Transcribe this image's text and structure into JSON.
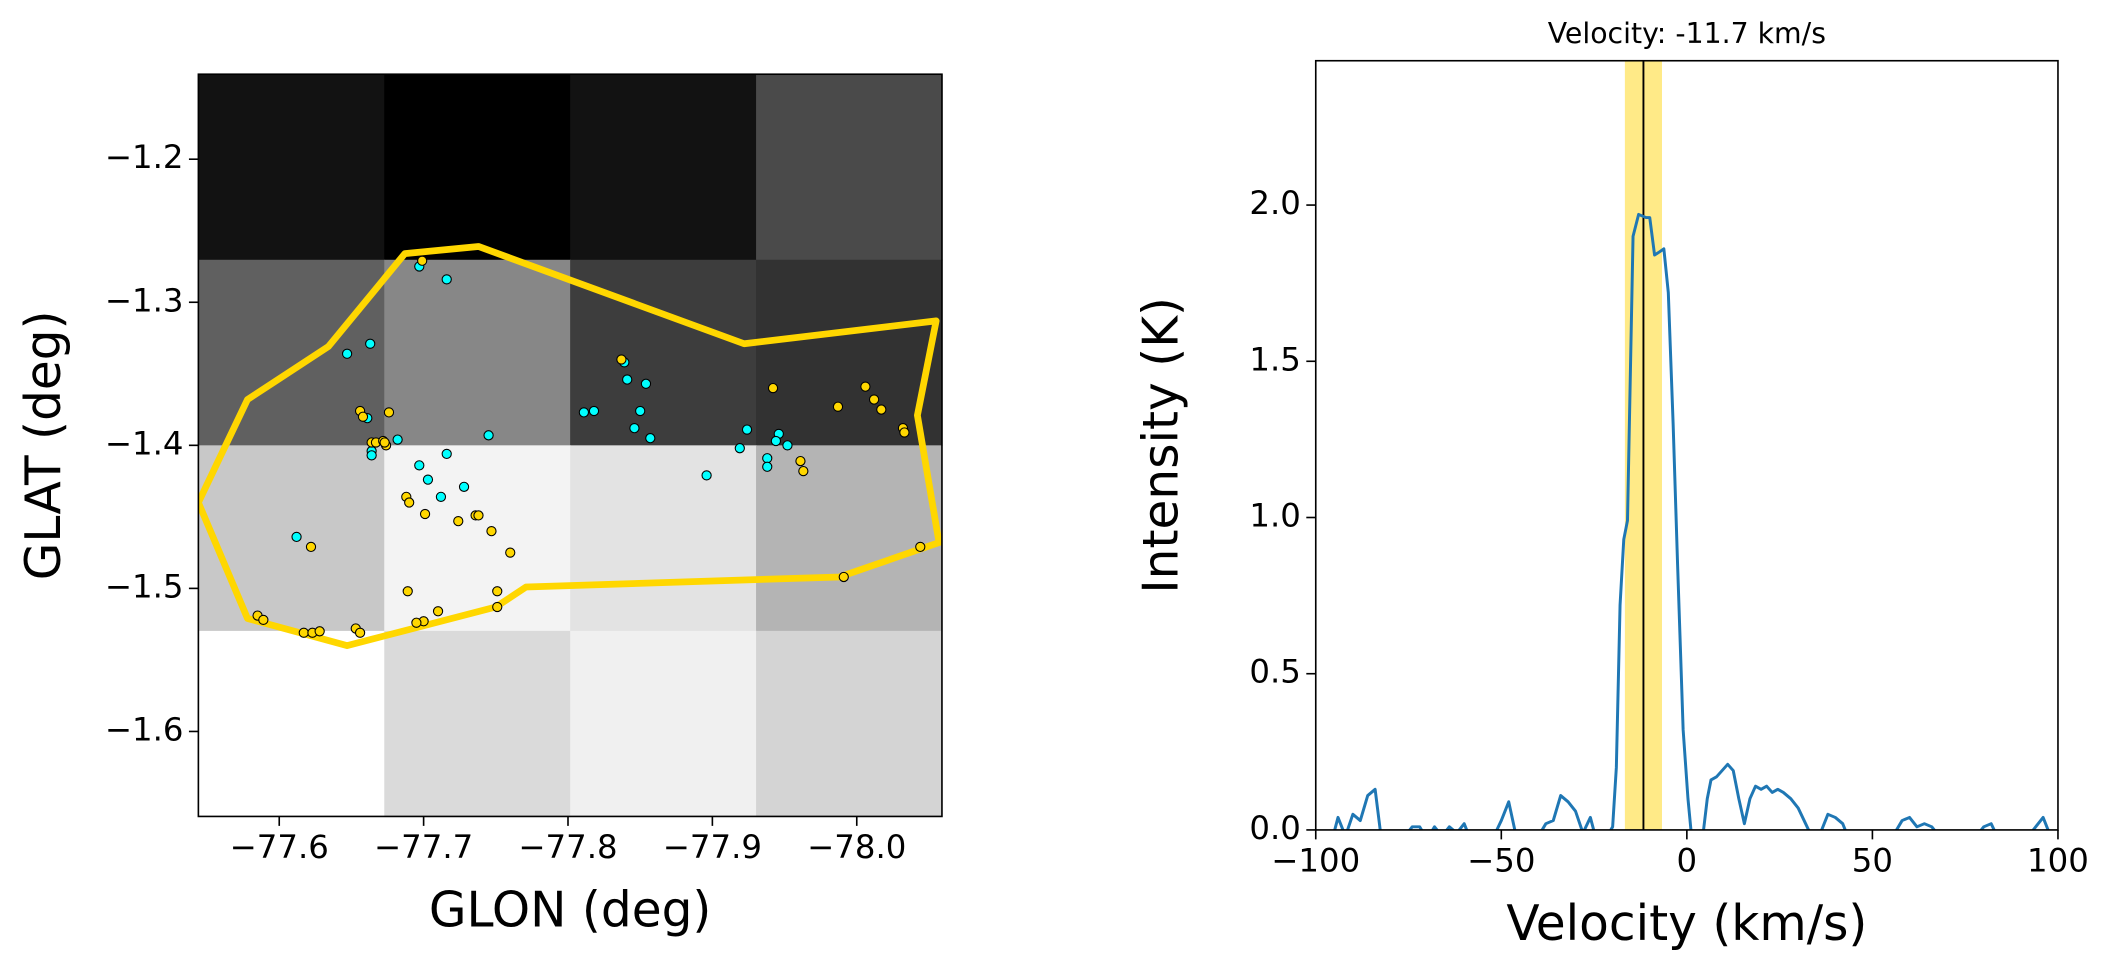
{
  "chart_data": [
    {
      "type": "image",
      "xlabel": "GLON (deg)",
      "ylabel": "GLAT (deg)",
      "xlim": [
        -77.544,
        -78.059
      ],
      "ylim": [
        -1.6594,
        -1.1406
      ],
      "xticks": [
        {
          "value": -77.6,
          "label": "−77.6"
        },
        {
          "value": -77.7,
          "label": "−77.7"
        },
        {
          "value": -77.8,
          "label": "−77.8"
        },
        {
          "value": -77.9,
          "label": "−77.9"
        },
        {
          "value": -78.0,
          "label": "−78.0"
        }
      ],
      "yticks": [
        {
          "value": -1.2,
          "label": "−1.2"
        },
        {
          "value": -1.3,
          "label": "−1.3"
        },
        {
          "value": -1.4,
          "label": "−1.4"
        },
        {
          "value": -1.5,
          "label": "−1.5"
        },
        {
          "value": -1.6,
          "label": "−1.6"
        }
      ],
      "cmap": "gray",
      "image": [
        [
          18,
          0,
          18,
          74
        ],
        [
          96,
          135,
          61,
          50
        ],
        [
          200,
          243,
          227,
          180
        ],
        [
          255,
          218,
          240,
          212
        ]
      ],
      "contour": {
        "color": "#ffd700",
        "lon": [
          -77.544,
          -77.578,
          -77.634,
          -77.687,
          -77.738,
          -77.922,
          -78.055,
          -78.042,
          -78.057,
          -77.988,
          -77.771,
          -77.75,
          -77.647,
          -77.578,
          -77.544
        ],
        "lat": [
          -1.44,
          -1.368,
          -1.331,
          -1.266,
          -1.261,
          -1.329,
          -1.313,
          -1.379,
          -1.468,
          -1.492,
          -1.499,
          -1.513,
          -1.54,
          -1.521,
          -1.44
        ]
      },
      "series": [
        {
          "color": "#00ffff",
          "x": [
            -77.697,
            -77.716,
            -77.647,
            -77.663,
            -77.661,
            -77.664,
            -77.664,
            -77.682,
            -77.697,
            -77.703,
            -77.716,
            -77.712,
            -77.728,
            -77.745,
            -77.811,
            -77.818,
            -77.839,
            -77.841,
            -77.854,
            -77.85,
            -77.846,
            -77.857,
            -77.896,
            -77.919,
            -77.924,
            -77.938,
            -77.938,
            -77.946,
            -77.944,
            -77.952,
            -77.612
          ],
          "y": [
            -1.275,
            -1.284,
            -1.336,
            -1.329,
            -1.381,
            -1.404,
            -1.407,
            -1.396,
            -1.414,
            -1.424,
            -1.406,
            -1.436,
            -1.429,
            -1.393,
            -1.377,
            -1.376,
            -1.342,
            -1.354,
            -1.357,
            -1.376,
            -1.388,
            -1.395,
            -1.421,
            -1.402,
            -1.389,
            -1.409,
            -1.415,
            -1.392,
            -1.397,
            -1.4,
            -1.464
          ]
        },
        {
          "color": "#ffd700",
          "x": [
            -77.699,
            -77.656,
            -77.658,
            -77.664,
            -77.667,
            -77.672,
            -77.676,
            -77.674,
            -77.688,
            -77.69,
            -77.701,
            -77.724,
            -77.736,
            -77.738,
            -77.747,
            -77.76,
            -77.689,
            -77.7,
            -77.71,
            -77.695,
            -77.751,
            -77.751,
            -77.622,
            -77.653,
            -77.656,
            -77.585,
            -77.589,
            -77.617,
            -77.623,
            -77.628,
            -77.942,
            -77.837,
            -77.987,
            -78.006,
            -78.012,
            -78.017,
            -78.032,
            -78.033,
            -77.961,
            -77.963,
            -77.991,
            -78.044,
            -77.673
          ],
          "y": [
            -1.271,
            -1.376,
            -1.38,
            -1.398,
            -1.398,
            -1.397,
            -1.377,
            -1.4,
            -1.436,
            -1.44,
            -1.448,
            -1.453,
            -1.449,
            -1.449,
            -1.46,
            -1.475,
            -1.502,
            -1.523,
            -1.516,
            -1.524,
            -1.502,
            -1.513,
            -1.471,
            -1.528,
            -1.531,
            -1.519,
            -1.522,
            -1.531,
            -1.531,
            -1.53,
            -1.36,
            -1.34,
            -1.373,
            -1.359,
            -1.368,
            -1.375,
            -1.388,
            -1.391,
            -1.411,
            -1.418,
            -1.492,
            -1.471,
            -1.398
          ]
        }
      ]
    },
    {
      "type": "line",
      "title": "Velocity: -11.7 km/s",
      "xlabel": "Velocity (km/s)",
      "ylabel": "Intensity (K)",
      "xlim": [
        -100,
        100
      ],
      "ylim": [
        0,
        2.462
      ],
      "xticks": [
        {
          "value": -100,
          "label": "−100"
        },
        {
          "value": -50,
          "label": "−50"
        },
        0,
        50,
        100
      ],
      "yticks": [
        {
          "value": 0,
          "label": "0.0"
        },
        {
          "value": 0.5,
          "label": "0.5"
        },
        {
          "value": 1,
          "label": "1.0"
        },
        {
          "value": 1.5,
          "label": "1.5"
        },
        {
          "value": 2,
          "label": "2.0"
        }
      ],
      "color": "#1f77b4",
      "band": {
        "values": [
          -16.7,
          -6.7
        ],
        "color": "#ffe87a"
      },
      "vline": {
        "value": -11.7,
        "color": "#000000"
      },
      "x": [
        -96,
        -94,
        -92,
        -90,
        -88,
        -86,
        -84,
        -82,
        -80,
        -78,
        -76,
        -74,
        -72,
        -70,
        -68,
        -66,
        -64,
        -62,
        -60,
        -58,
        -56,
        -54,
        -52,
        -50,
        -48,
        -46,
        -44,
        -42,
        -40,
        -38,
        -36,
        -34,
        -32,
        -30,
        -28,
        -26,
        -24,
        -22,
        -20,
        -19,
        -18,
        -17,
        -16,
        -14.5,
        -13,
        -11,
        -10,
        -8.7,
        -7.4,
        -6.2,
        -5,
        -3.7,
        -2.5,
        -1,
        0.3,
        1.5,
        3,
        4,
        5.5,
        6.5,
        8,
        9.5,
        11,
        12.5,
        14,
        15.5,
        17,
        18.5,
        20,
        21.5,
        23,
        24.5,
        26,
        28,
        30,
        32,
        34,
        36,
        38,
        40,
        42,
        44,
        46,
        48,
        50,
        52,
        54,
        56,
        58,
        60,
        62,
        64,
        66,
        68,
        70,
        72,
        74,
        76,
        78,
        80,
        82,
        84,
        86,
        88,
        90,
        92,
        94,
        96,
        98
      ],
      "values": [
        -0.05,
        0.04,
        -0.02,
        0.05,
        0.03,
        0.11,
        0.13,
        -0.06,
        -0.1,
        -0.05,
        -0.02,
        0.01,
        0.01,
        -0.03,
        0.01,
        -0.02,
        0.01,
        -0.01,
        0.02,
        -0.04,
        -0.08,
        -0.03,
        -0.02,
        0.03,
        0.09,
        -0.02,
        -0.1,
        -0.06,
        -0.02,
        0.02,
        0.03,
        0.11,
        0.09,
        0.06,
        -0.01,
        0.04,
        -0.05,
        -0.03,
        0.01,
        0.2,
        0.72,
        0.93,
        0.99,
        1.9,
        1.97,
        1.96,
        1.96,
        1.84,
        1.85,
        1.86,
        1.72,
        1.3,
        0.85,
        0.32,
        0.1,
        -0.05,
        -0.15,
        -0.05,
        0.1,
        0.16,
        0.17,
        0.19,
        0.21,
        0.19,
        0.1,
        0.02,
        0.1,
        0.14,
        0.13,
        0.14,
        0.12,
        0.13,
        0.12,
        0.1,
        0.07,
        0.02,
        -0.03,
        -0.01,
        0.05,
        0.04,
        0.02,
        -0.04,
        -0.03,
        -0.06,
        -0.05,
        -0.03,
        -0.02,
        -0.01,
        0.03,
        0.04,
        0.01,
        0.02,
        0.01,
        -0.02,
        -0.03,
        -0.04,
        -0.05,
        -0.05,
        -0.02,
        0.01,
        0.02,
        -0.03,
        -0.05,
        -0.05,
        -0.04,
        -0.02,
        0.01,
        0.04,
        -0.02
      ]
    }
  ]
}
